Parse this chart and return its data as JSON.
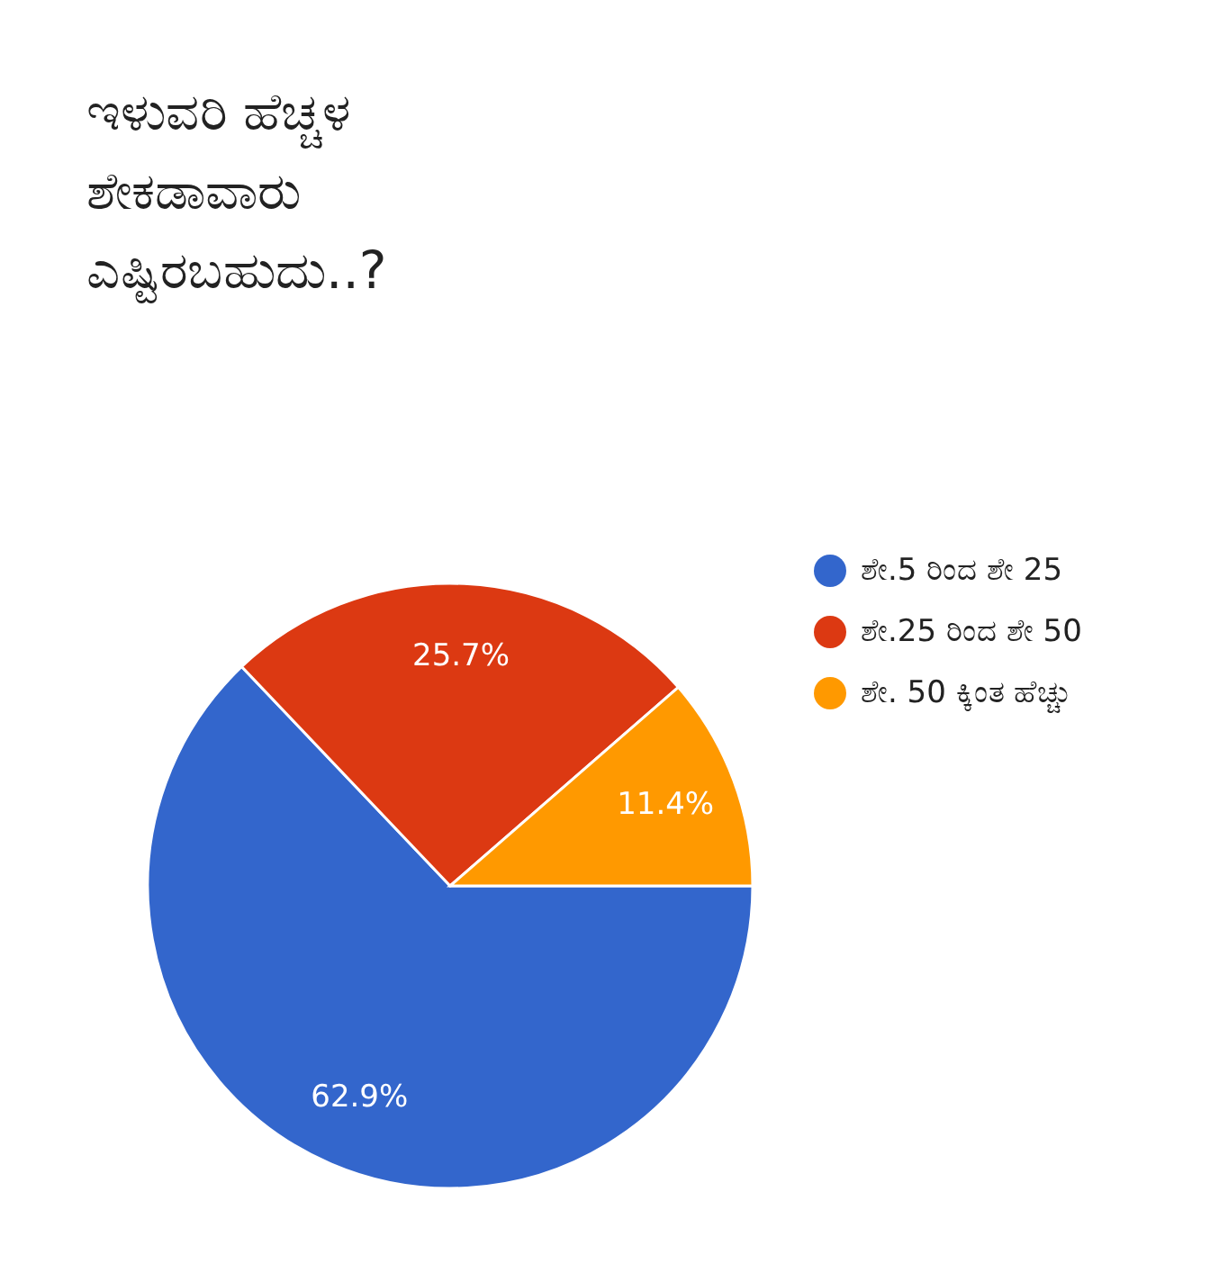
{
  "chart_data": {
    "type": "pie",
    "title": "ಇಳುವರಿ ಹೆಚ್ಚಳ ಶೇಕಡಾವಾರು ಎಷ್ಟಿರಬಹುದು..?",
    "categories": [
      "ಶೇ.5 ರಿಂದ ಶೇ 25",
      "ಶೇ.25 ರಿಂದ ಶೇ 50",
      "ಶೇ. 50 ಕ್ಕಿಂತ ಹೆಚ್ಚು"
    ],
    "values": [
      62.9,
      25.7,
      11.4
    ],
    "value_labels": [
      "62.9%",
      "25.7%",
      "11.4%"
    ],
    "colors": [
      "#3366cc",
      "#dc3912",
      "#ff9900"
    ],
    "legend": "right"
  }
}
